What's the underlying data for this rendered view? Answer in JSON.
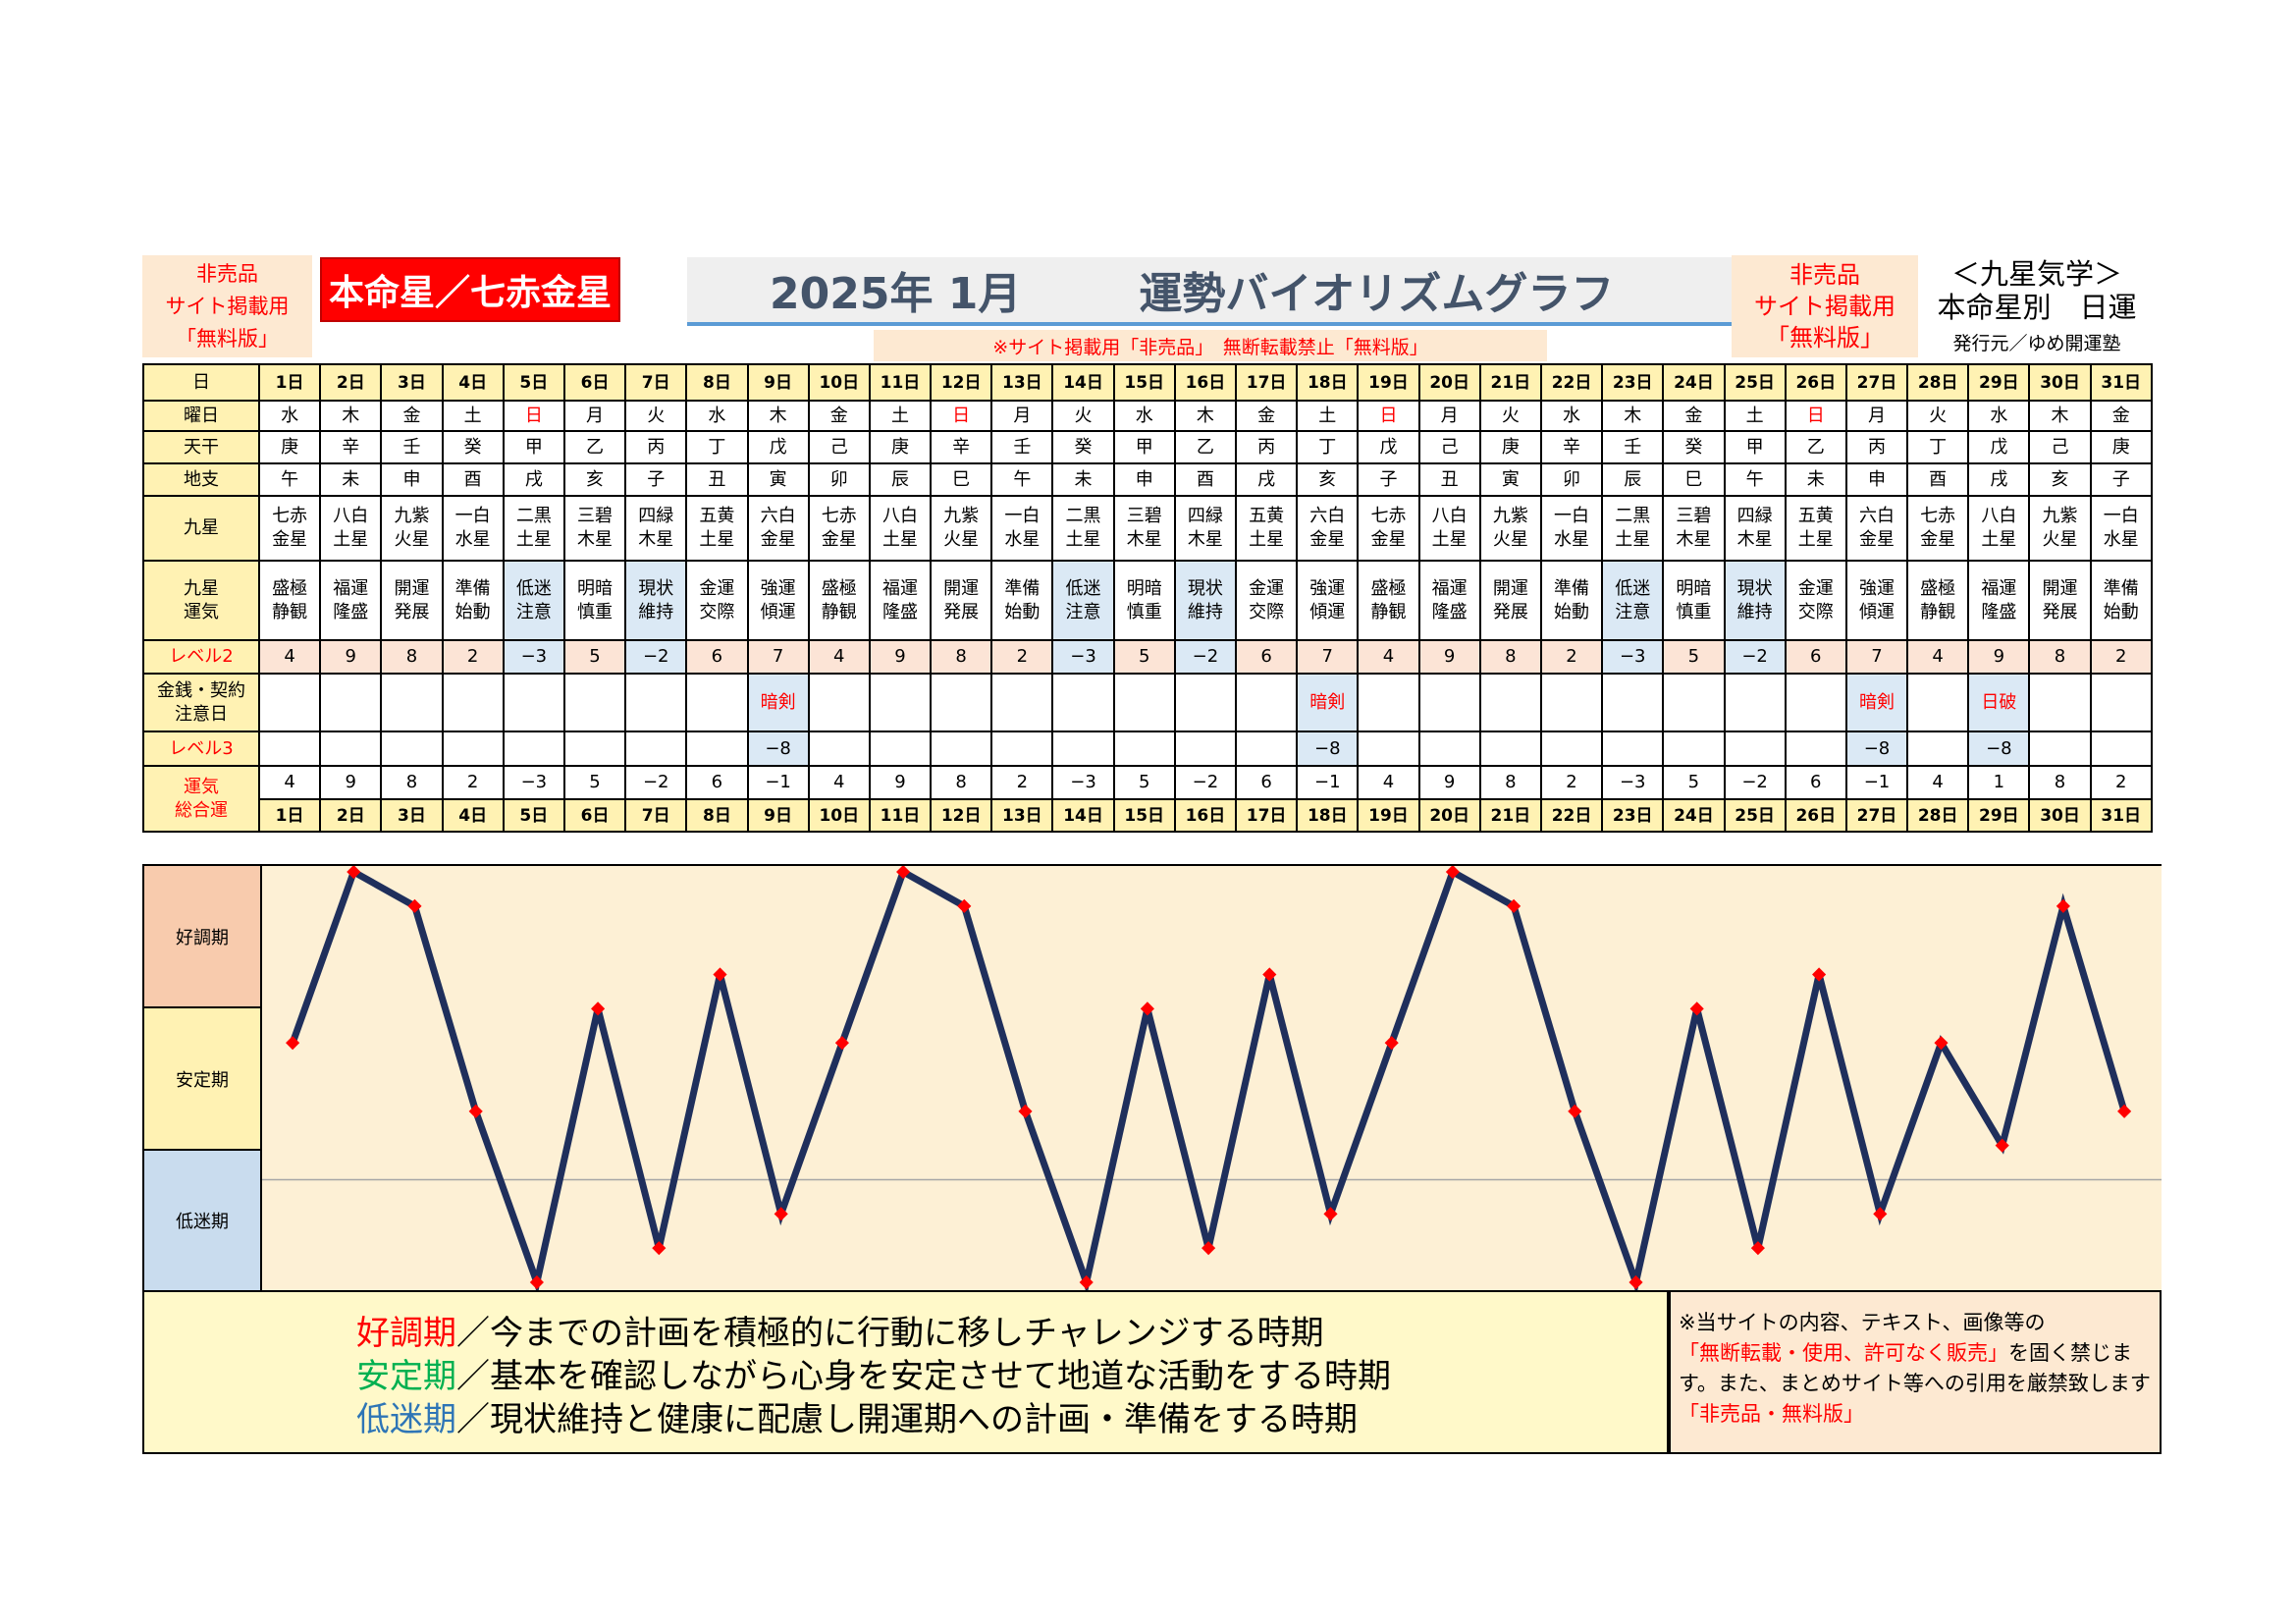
{
  "header": {
    "left_box": [
      "非売品",
      "サイト掲載用",
      "「無料版」"
    ],
    "star_label": "本命星／七赤金星",
    "title_date": "2025年 1月",
    "title_main": "運勢バイオリズムグラフ",
    "notice_line": "※サイト掲載用「非売品」　無断転載禁止「無料版」",
    "right_box": [
      "非売品",
      "サイト掲載用",
      "「無料版」"
    ],
    "kyusei_title": "＜九星気学＞",
    "kyusei_sub": "本命星別　日運",
    "publisher": "発行元／ゆめ開運塾"
  },
  "table": {
    "labels": {
      "day": "日",
      "weekday": "曜日",
      "tenkan": "天干",
      "chishi": "地支",
      "kyusei": "九星",
      "kyusei_unki": "九星\n運気",
      "level2": "レベル2",
      "money": "金銭・契約\n注意日",
      "level3": "レベル3",
      "total": "運気\n総合運"
    },
    "days": [
      "1日",
      "2日",
      "3日",
      "4日",
      "5日",
      "6日",
      "7日",
      "8日",
      "9日",
      "10日",
      "11日",
      "12日",
      "13日",
      "14日",
      "15日",
      "16日",
      "17日",
      "18日",
      "19日",
      "20日",
      "21日",
      "22日",
      "23日",
      "24日",
      "25日",
      "26日",
      "27日",
      "28日",
      "29日",
      "30日",
      "31日"
    ],
    "weekdays": [
      "水",
      "木",
      "金",
      "土",
      "日",
      "月",
      "火",
      "水",
      "木",
      "金",
      "土",
      "日",
      "月",
      "火",
      "水",
      "木",
      "金",
      "土",
      "日",
      "月",
      "火",
      "水",
      "木",
      "金",
      "土",
      "日",
      "月",
      "火",
      "水",
      "木",
      "金"
    ],
    "tenkan": [
      "庚",
      "辛",
      "壬",
      "癸",
      "甲",
      "乙",
      "丙",
      "丁",
      "戊",
      "己",
      "庚",
      "辛",
      "壬",
      "癸",
      "甲",
      "乙",
      "丙",
      "丁",
      "戊",
      "己",
      "庚",
      "辛",
      "壬",
      "癸",
      "甲",
      "乙",
      "丙",
      "丁",
      "戊",
      "己",
      "庚"
    ],
    "chishi": [
      "午",
      "未",
      "申",
      "酉",
      "戌",
      "亥",
      "子",
      "丑",
      "寅",
      "卯",
      "辰",
      "巳",
      "午",
      "未",
      "申",
      "酉",
      "戌",
      "亥",
      "子",
      "丑",
      "寅",
      "卯",
      "辰",
      "巳",
      "午",
      "未",
      "申",
      "酉",
      "戌",
      "亥",
      "子"
    ],
    "kyusei": [
      "七赤\n金星",
      "八白\n土星",
      "九紫\n火星",
      "一白\n水星",
      "二黒\n土星",
      "三碧\n木星",
      "四緑\n木星",
      "五黄\n土星",
      "六白\n金星",
      "七赤\n金星",
      "八白\n土星",
      "九紫\n火星",
      "一白\n水星",
      "二黒\n土星",
      "三碧\n木星",
      "四緑\n木星",
      "五黄\n土星",
      "六白\n金星",
      "七赤\n金星",
      "八白\n土星",
      "九紫\n火星",
      "一白\n水星",
      "二黒\n土星",
      "三碧\n木星",
      "四緑\n木星",
      "五黄\n土星",
      "六白\n金星",
      "七赤\n金星",
      "八白\n土星",
      "九紫\n火星",
      "一白\n水星"
    ],
    "unki": [
      "盛極\n静観",
      "福運\n隆盛",
      "開運\n発展",
      "準備\n始動",
      "低迷\n注意",
      "明暗\n慎重",
      "現状\n維持",
      "金運\n交際",
      "強運\n傾運",
      "盛極\n静観",
      "福運\n隆盛",
      "開運\n発展",
      "準備\n始動",
      "低迷\n注意",
      "明暗\n慎重",
      "現状\n維持",
      "金運\n交際",
      "強運\n傾運",
      "盛極\n静観",
      "福運\n隆盛",
      "開運\n発展",
      "準備\n始動",
      "低迷\n注意",
      "明暗\n慎重",
      "現状\n維持",
      "金運\n交際",
      "強運\n傾運",
      "盛極\n静観",
      "福運\n隆盛",
      "開運\n発展",
      "準備\n始動"
    ],
    "level2": [
      "4",
      "9",
      "8",
      "2",
      "−3",
      "5",
      "−2",
      "6",
      "7",
      "4",
      "9",
      "8",
      "2",
      "−3",
      "5",
      "−2",
      "6",
      "7",
      "4",
      "9",
      "8",
      "2",
      "−3",
      "5",
      "−2",
      "6",
      "7",
      "4",
      "9",
      "8",
      "2"
    ],
    "money": [
      "",
      "",
      "",
      "",
      "",
      "",
      "",
      "",
      "暗剣",
      "",
      "",
      "",
      "",
      "",
      "",
      "",
      "",
      "暗剣",
      "",
      "",
      "",
      "",
      "",
      "",
      "",
      "",
      "暗剣",
      "",
      "日破",
      "",
      ""
    ],
    "level3": [
      "",
      "",
      "",
      "",
      "",
      "",
      "",
      "",
      "−8",
      "",
      "",
      "",
      "",
      "",
      "",
      "",
      "",
      "−8",
      "",
      "",
      "",
      "",
      "",
      "",
      "",
      "",
      "−8",
      "",
      "−8",
      "",
      ""
    ],
    "total": [
      "4",
      "9",
      "8",
      "2",
      "−3",
      "5",
      "−2",
      "6",
      "−1",
      "4",
      "9",
      "8",
      "2",
      "−3",
      "5",
      "−2",
      "6",
      "−1",
      "4",
      "9",
      "8",
      "2",
      "−3",
      "5",
      "−2",
      "6",
      "−1",
      "4",
      "1",
      "8",
      "2"
    ]
  },
  "chart_data": {
    "type": "line",
    "x": [
      1,
      2,
      3,
      4,
      5,
      6,
      7,
      8,
      9,
      10,
      11,
      12,
      13,
      14,
      15,
      16,
      17,
      18,
      19,
      20,
      21,
      22,
      23,
      24,
      25,
      26,
      27,
      28,
      29,
      30,
      31
    ],
    "series": [
      {
        "values": [
          4,
          9,
          8,
          2,
          -3,
          5,
          -2,
          6,
          -1,
          4,
          9,
          8,
          2,
          -3,
          5,
          -2,
          6,
          -1,
          4,
          9,
          8,
          2,
          -3,
          5,
          -2,
          6,
          -1,
          4,
          1,
          8,
          2
        ]
      }
    ],
    "ylim": [
      -3,
      9
    ],
    "bands": [
      "好調期",
      "安定期",
      "低迷期"
    ],
    "line_color": "#1f2f5c",
    "marker_color": "#ff0000"
  },
  "legend": {
    "good_term": "好調期",
    "good_text": "／今までの計画を積極的に行動に移しチャレンジする時期",
    "stable_term": "安定期",
    "stable_text": "／基本を確認しながら心身を安定させて地道な活動をする時期",
    "low_term": "低迷期",
    "low_text": "／現状維持と健康に配慮し開運期への計画・準備をする時期"
  },
  "notice": {
    "line1": "※当サイトの内容、テキスト、画像等の",
    "red1": "「無断転載・使用、許可なく販売」",
    "line2": "を固く禁じます。また、まとめサイト等への引用を厳禁致します",
    "red2": "「非売品・無料版」"
  }
}
